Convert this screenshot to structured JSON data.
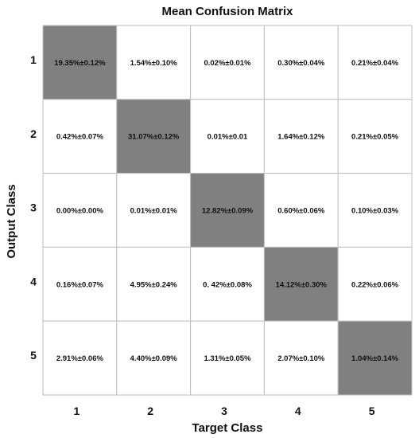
{
  "chart_data": {
    "type": "heatmap",
    "title": "Mean Confusion Matrix",
    "xlabel": "Target Class",
    "ylabel": "Output Class",
    "x_categories": [
      "1",
      "2",
      "3",
      "4",
      "5"
    ],
    "y_categories": [
      "1",
      "2",
      "3",
      "4",
      "5"
    ],
    "cells": [
      [
        "19.35%±0.12%",
        "1.54%±0.10%",
        "0.02%±0.01%",
        "0.30%±0.04%",
        "0.21%±0.04%"
      ],
      [
        "0.42%±0.07%",
        "31.07%±0.12%",
        "0.01%±0.01",
        "1.64%±0.12%",
        "0.21%±0.05%"
      ],
      [
        "0.00%±0.00%",
        "0.01%±0.01%",
        "12.82%±0.09%",
        "0.60%±0.06%",
        "0.10%±0.03%"
      ],
      [
        "0.16%±0.07%",
        "4.95%±0.24%",
        "0. 42%±0.08%",
        "14.12%±0.30%",
        "0.22%±0.06%"
      ],
      [
        "2.91%±0.06%",
        "4.40%±0.09%",
        "1.31%±0.05%",
        "2.07%±0.10%",
        "1.04%±0.14%"
      ]
    ],
    "diagonal_color": "#808080",
    "offdiagonal_color": "#ffffff",
    "gridline_color": "#bfbfbf"
  }
}
